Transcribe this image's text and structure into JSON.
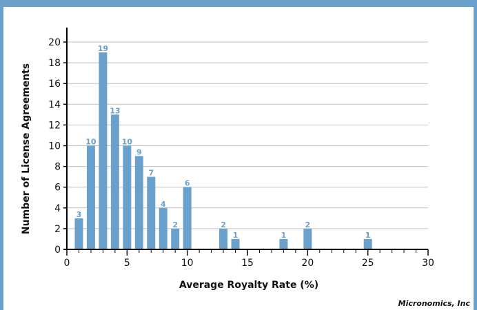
{
  "chart_data": {
    "type": "bar",
    "title": "",
    "xlabel": "Average Royalty Rate (%)",
    "ylabel": "Number of License Agreements",
    "xlim": [
      0,
      30
    ],
    "ylim": [
      0,
      21
    ],
    "x_ticks": [
      0,
      5,
      10,
      15,
      20,
      25,
      30
    ],
    "y_ticks": [
      0,
      2,
      4,
      6,
      8,
      10,
      12,
      14,
      16,
      18,
      20
    ],
    "grid": "horizontal",
    "legend": "none",
    "x": [
      1,
      2,
      3,
      4,
      5,
      6,
      7,
      8,
      9,
      10,
      13,
      14,
      18,
      20,
      25
    ],
    "values": [
      3,
      10,
      19,
      13,
      10,
      9,
      7,
      4,
      2,
      6,
      2,
      1,
      1,
      2,
      1
    ],
    "data_labels": [
      "3",
      "10",
      "19",
      "13",
      "10",
      "9",
      "7",
      "4",
      "2",
      "6",
      "2",
      "1",
      "1",
      "2",
      "1"
    ],
    "bar_color": "#6aa0cc",
    "source": "Micronomics, Inc"
  },
  "colors": {
    "frame": "#6aa0cc",
    "bar": "#6aa0cc",
    "grid": "#bfbfbf"
  }
}
